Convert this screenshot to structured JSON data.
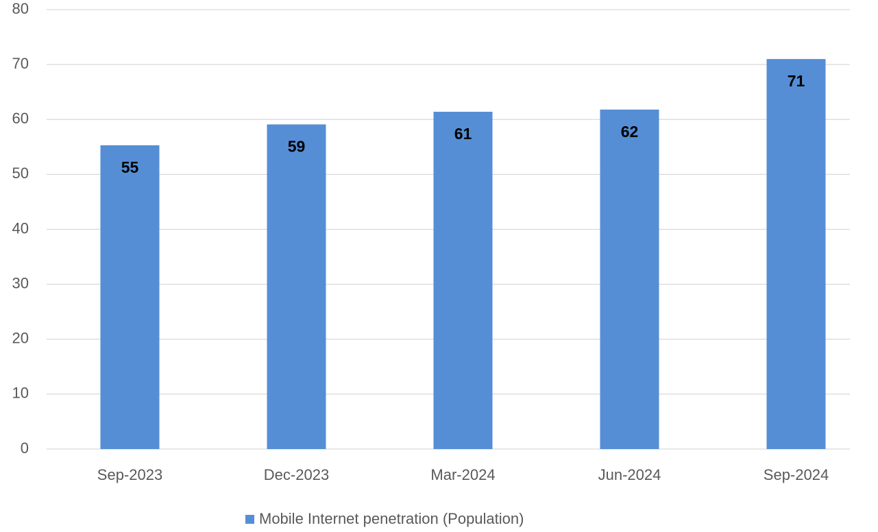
{
  "chart_data": {
    "type": "bar",
    "categories": [
      "Sep-2023",
      "Dec-2023",
      "Mar-2024",
      "Jun-2024",
      "Sep-2024"
    ],
    "series": [
      {
        "name": "Mobile Internet penetration (Population)",
        "color": "#558ed5",
        "values": [
          55.3,
          59.1,
          61.4,
          61.8,
          71.0
        ],
        "value_labels": [
          "55",
          "59",
          "61",
          "62",
          "71"
        ]
      }
    ],
    "ylim": [
      0,
      80
    ],
    "yticks": [
      0,
      10,
      20,
      30,
      40,
      50,
      60,
      70,
      80
    ],
    "grid": true,
    "legend": "bottom"
  }
}
